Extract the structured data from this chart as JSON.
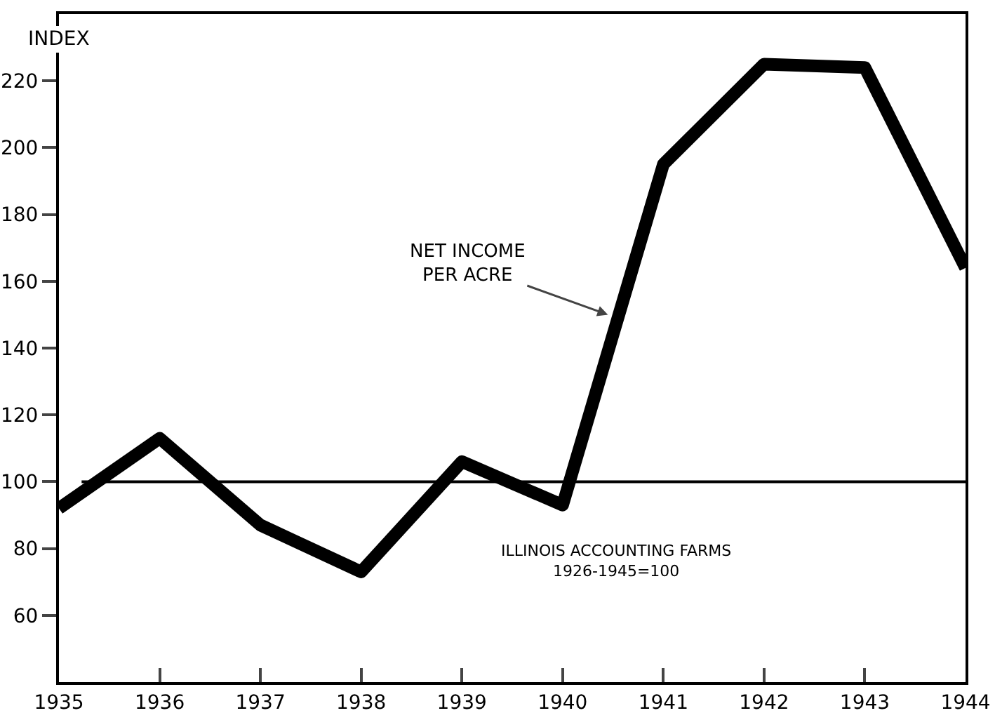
{
  "chart_data": {
    "type": "line",
    "ylabel": "INDEX",
    "x": [
      1935,
      1936,
      1937,
      1938,
      1939,
      1940,
      1941,
      1942,
      1943,
      1944
    ],
    "series": [
      {
        "color": "#000000",
        "values": [
          92,
          113,
          87,
          73,
          106,
          93,
          195,
          225,
          224,
          164
        ]
      }
    ],
    "xlim": [
      1935,
      1944
    ],
    "xticks": [
      1935,
      1936,
      1937,
      1938,
      1939,
      1940,
      1941,
      1942,
      1943,
      1944
    ],
    "ylim": [
      40,
      240
    ],
    "yticks": [
      60,
      80,
      100,
      120,
      140,
      160,
      180,
      200,
      220
    ],
    "ref_lines": [
      {
        "axis": "y",
        "value": 100,
        "color": "#000000",
        "line_style": "solid"
      }
    ],
    "annotations": [
      {
        "text": "NET INCOME\nPER ACRE",
        "x": 1940.45,
        "y": 150
      },
      "ILLINOIS ACCOUNTING FARMS\n1926-1945=100"
    ],
    "grid": false,
    "marker": "none",
    "line_style": "solid"
  }
}
